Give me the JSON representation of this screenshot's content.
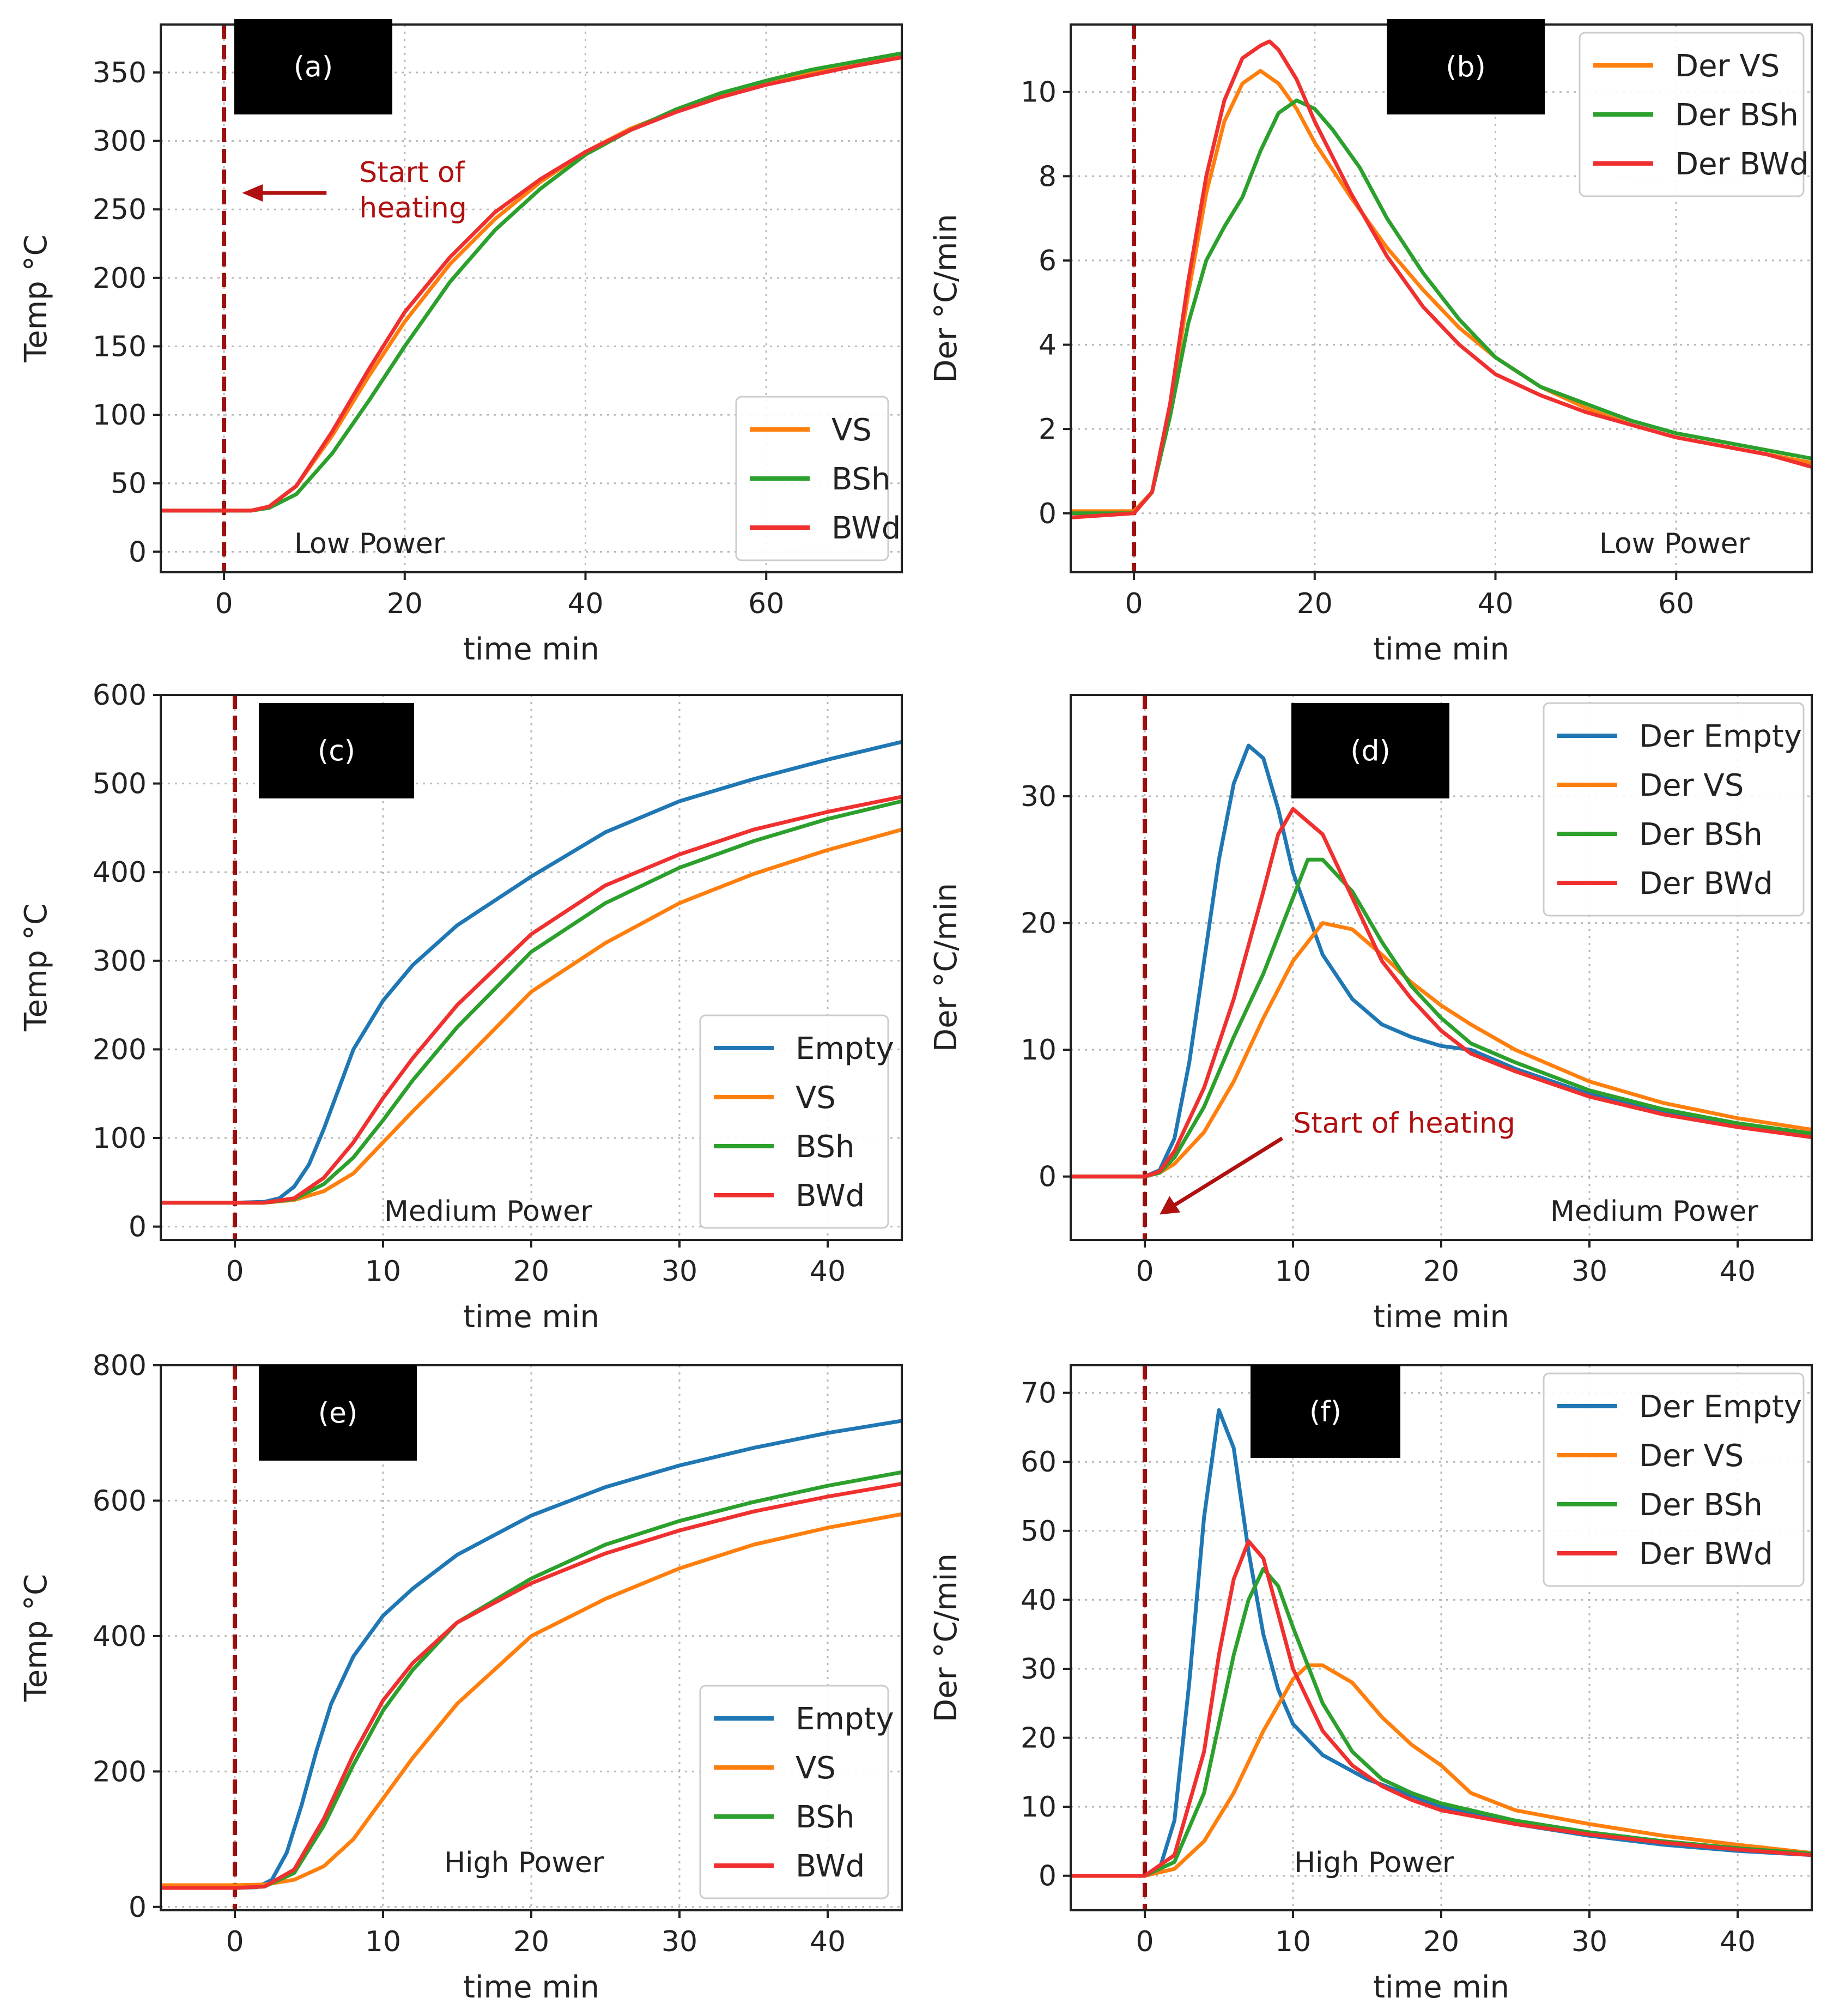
{
  "colors": {
    "Empty": "#1f77b4",
    "VS": "#ff7f0e",
    "BSh": "#2ca02c",
    "BWd": "#f0302f",
    "start_line": "#9b0f0f",
    "annotation": "#b01010"
  },
  "chart_data": [
    {
      "panel": "(a)",
      "type": "line",
      "xlabel": "time min",
      "ylabel": "Temp °C",
      "xlim": [
        -7,
        75
      ],
      "ylim": [
        -15,
        385
      ],
      "xticks": [
        0,
        20,
        40,
        60
      ],
      "yticks": [
        0,
        50,
        100,
        150,
        200,
        250,
        300,
        350
      ],
      "grid": true,
      "legend": "lower-right",
      "power_label": "Low Power",
      "annotation": {
        "text": [
          "Start of",
          "heating"
        ],
        "arrow_to": [
          2,
          262
        ]
      },
      "series": [
        {
          "key": "VS",
          "name": "VS",
          "x": [
            -7,
            0,
            3,
            5,
            8,
            12,
            16,
            20,
            25,
            30,
            35,
            40,
            45,
            50,
            55,
            60,
            65,
            70,
            75
          ],
          "y": [
            30,
            30,
            30,
            33,
            48,
            85,
            128,
            168,
            210,
            243,
            270,
            292,
            309,
            322,
            334,
            343,
            350,
            357,
            363
          ]
        },
        {
          "key": "BSh",
          "name": "BSh",
          "x": [
            -7,
            0,
            3,
            5,
            8,
            12,
            16,
            20,
            25,
            30,
            35,
            40,
            45,
            50,
            55,
            60,
            65,
            70,
            75
          ],
          "y": [
            30,
            30,
            30,
            32,
            42,
            72,
            110,
            150,
            197,
            235,
            265,
            290,
            308,
            323,
            335,
            344,
            352,
            358,
            364
          ]
        },
        {
          "key": "BWd",
          "name": "BWd",
          "x": [
            -7,
            0,
            3,
            5,
            8,
            12,
            16,
            20,
            25,
            30,
            35,
            40,
            45,
            50,
            55,
            60,
            65,
            70,
            75
          ],
          "y": [
            30,
            30,
            30,
            33,
            48,
            88,
            133,
            175,
            215,
            248,
            272,
            292,
            308,
            321,
            332,
            341,
            348,
            355,
            361
          ]
        }
      ]
    },
    {
      "panel": "(b)",
      "type": "line",
      "xlabel": "time min",
      "ylabel": "Der °C/min",
      "xlim": [
        -7,
        75
      ],
      "ylim": [
        -1.4,
        11.6
      ],
      "xticks": [
        0,
        20,
        40,
        60
      ],
      "yticks": [
        0,
        2,
        4,
        6,
        8,
        10
      ],
      "grid": true,
      "legend": "top-right",
      "power_label": "Low Power",
      "series": [
        {
          "key": "VS",
          "name": "Der VS",
          "x": [
            -7,
            0,
            2,
            4,
            6,
            8,
            10,
            12,
            14,
            16,
            18,
            20,
            24,
            28,
            32,
            36,
            40,
            45,
            50,
            55,
            60,
            65,
            70,
            75
          ],
          "y": [
            0.05,
            0.05,
            0.5,
            2.5,
            5.2,
            7.6,
            9.3,
            10.2,
            10.5,
            10.2,
            9.6,
            8.8,
            7.5,
            6.3,
            5.3,
            4.4,
            3.7,
            3.0,
            2.5,
            2.1,
            1.8,
            1.6,
            1.4,
            1.2
          ]
        },
        {
          "key": "BSh",
          "name": "Der BSh",
          "x": [
            -7,
            0,
            2,
            4,
            6,
            8,
            10,
            12,
            14,
            16,
            18,
            20,
            22,
            25,
            28,
            32,
            36,
            40,
            45,
            50,
            55,
            60,
            65,
            70,
            75
          ],
          "y": [
            0.0,
            0.0,
            0.5,
            2.3,
            4.5,
            6.0,
            6.8,
            7.5,
            8.6,
            9.5,
            9.8,
            9.6,
            9.1,
            8.2,
            7.0,
            5.7,
            4.6,
            3.7,
            3.0,
            2.6,
            2.2,
            1.9,
            1.7,
            1.5,
            1.3
          ]
        },
        {
          "key": "BWd",
          "name": "Der BWd",
          "x": [
            -7,
            0,
            2,
            4,
            6,
            8,
            10,
            12,
            14,
            15,
            16,
            18,
            20,
            24,
            28,
            32,
            36,
            40,
            45,
            50,
            55,
            60,
            65,
            70,
            75
          ],
          "y": [
            -0.1,
            0.0,
            0.5,
            2.6,
            5.5,
            8.0,
            9.8,
            10.8,
            11.1,
            11.2,
            11.0,
            10.3,
            9.3,
            7.6,
            6.1,
            4.9,
            4.0,
            3.3,
            2.8,
            2.4,
            2.1,
            1.8,
            1.6,
            1.4,
            1.1
          ]
        }
      ]
    },
    {
      "panel": "(c)",
      "type": "line",
      "xlabel": "time min",
      "ylabel": "Temp °C",
      "xlim": [
        -5,
        45
      ],
      "ylim": [
        -15,
        600
      ],
      "xticks": [
        0,
        10,
        20,
        30,
        40
      ],
      "yticks": [
        0,
        100,
        200,
        300,
        400,
        500,
        600
      ],
      "grid": true,
      "legend": "lower-right",
      "power_label": "Medium Power",
      "series": [
        {
          "key": "Empty",
          "name": "Empty",
          "x": [
            -5,
            0,
            2,
            3,
            4,
            5,
            6,
            7,
            8,
            10,
            12,
            15,
            20,
            25,
            30,
            35,
            40,
            45
          ],
          "y": [
            27,
            27,
            28,
            32,
            45,
            70,
            110,
            155,
            200,
            255,
            295,
            340,
            395,
            445,
            480,
            505,
            527,
            547
          ]
        },
        {
          "key": "VS",
          "name": "VS",
          "x": [
            -5,
            0,
            2,
            4,
            6,
            8,
            10,
            12,
            15,
            20,
            25,
            30,
            35,
            40,
            45
          ],
          "y": [
            27,
            27,
            27,
            30,
            40,
            60,
            95,
            130,
            180,
            265,
            320,
            365,
            398,
            425,
            448
          ]
        },
        {
          "key": "BSh",
          "name": "BSh",
          "x": [
            -5,
            0,
            2,
            4,
            6,
            8,
            10,
            12,
            15,
            20,
            25,
            30,
            35,
            40,
            45
          ],
          "y": [
            27,
            27,
            27,
            31,
            48,
            78,
            120,
            165,
            225,
            310,
            365,
            405,
            435,
            460,
            480
          ]
        },
        {
          "key": "BWd",
          "name": "BWd",
          "x": [
            -5,
            0,
            2,
            4,
            6,
            8,
            10,
            12,
            15,
            20,
            25,
            30,
            35,
            40,
            45
          ],
          "y": [
            27,
            27,
            27,
            32,
            55,
            95,
            145,
            190,
            250,
            330,
            385,
            420,
            448,
            468,
            485
          ]
        }
      ]
    },
    {
      "panel": "(d)",
      "type": "line",
      "xlabel": "time min",
      "ylabel": "Der °C/min",
      "xlim": [
        -5,
        45
      ],
      "ylim": [
        -5,
        38
      ],
      "xticks": [
        0,
        10,
        20,
        30,
        40
      ],
      "yticks": [
        0,
        10,
        20,
        30
      ],
      "grid": true,
      "legend": "top-right",
      "power_label": "Medium Power",
      "annotation": {
        "text": [
          "Start of heating"
        ],
        "arrow_to": [
          1,
          -3
        ]
      },
      "series": [
        {
          "key": "Empty",
          "name": "Der Empty",
          "x": [
            -5,
            0,
            1,
            2,
            3,
            4,
            5,
            6,
            7,
            8,
            9,
            10,
            12,
            14,
            16,
            18,
            20,
            22,
            25,
            30,
            35,
            40,
            45
          ],
          "y": [
            0,
            0,
            0.5,
            3,
            9,
            17,
            25,
            31,
            34,
            33,
            29,
            24,
            17.5,
            14,
            12,
            11,
            10.3,
            10,
            8.5,
            6.5,
            5,
            4,
            3.3
          ]
        },
        {
          "key": "VS",
          "name": "Der VS",
          "x": [
            -5,
            0,
            1,
            2,
            4,
            6,
            8,
            10,
            12,
            14,
            16,
            18,
            20,
            22,
            25,
            30,
            35,
            40,
            45
          ],
          "y": [
            0,
            0,
            0.3,
            1,
            3.5,
            7.5,
            12.5,
            17,
            20,
            19.5,
            17.5,
            15.3,
            13.5,
            12,
            10,
            7.5,
            5.8,
            4.6,
            3.7
          ]
        },
        {
          "key": "BSh",
          "name": "Der BSh",
          "x": [
            -5,
            0,
            1,
            2,
            4,
            6,
            8,
            10,
            11,
            12,
            14,
            16,
            18,
            20,
            22,
            25,
            30,
            35,
            40,
            45
          ],
          "y": [
            0,
            0,
            0.3,
            1.5,
            5.5,
            11,
            16,
            22,
            25,
            25,
            22.5,
            18.5,
            15,
            12.5,
            10.5,
            9,
            6.8,
            5.3,
            4.2,
            3.4
          ]
        },
        {
          "key": "BWd",
          "name": "Der BWd",
          "x": [
            -5,
            0,
            1,
            2,
            4,
            6,
            8,
            9,
            10,
            12,
            14,
            16,
            18,
            20,
            22,
            25,
            30,
            35,
            40,
            45
          ],
          "y": [
            0,
            0,
            0.4,
            2,
            7,
            14,
            22.5,
            27,
            29,
            27,
            22,
            17,
            14,
            11.5,
            9.7,
            8.3,
            6.3,
            4.9,
            3.9,
            3.1
          ]
        }
      ]
    },
    {
      "panel": "(e)",
      "type": "line",
      "xlabel": "time min",
      "ylabel": "Temp °C",
      "xlim": [
        -5,
        45
      ],
      "ylim": [
        -5,
        800
      ],
      "xticks": [
        0,
        10,
        20,
        30,
        40
      ],
      "yticks": [
        0,
        200,
        400,
        600,
        800
      ],
      "grid": true,
      "legend": "lower-right",
      "power_label": "High Power",
      "series": [
        {
          "key": "Empty",
          "name": "Empty",
          "x": [
            -5,
            0,
            1.5,
            2.5,
            3.5,
            4.5,
            5.5,
            6.5,
            8,
            10,
            12,
            15,
            20,
            25,
            30,
            35,
            40,
            45
          ],
          "y": [
            28,
            28,
            29,
            40,
            80,
            150,
            230,
            300,
            370,
            430,
            470,
            520,
            578,
            620,
            652,
            678,
            700,
            718
          ]
        },
        {
          "key": "VS",
          "name": "VS",
          "x": [
            -5,
            0,
            2,
            4,
            6,
            8,
            10,
            12,
            15,
            20,
            25,
            30,
            35,
            40,
            45
          ],
          "y": [
            32,
            32,
            33,
            40,
            60,
            100,
            160,
            220,
            300,
            400,
            455,
            500,
            535,
            560,
            580
          ]
        },
        {
          "key": "BSh",
          "name": "BSh",
          "x": [
            -5,
            0,
            2,
            4,
            6,
            8,
            10,
            12,
            15,
            20,
            25,
            30,
            35,
            40,
            45
          ],
          "y": [
            28,
            28,
            30,
            50,
            120,
            210,
            290,
            350,
            420,
            485,
            535,
            570,
            598,
            622,
            642
          ]
        },
        {
          "key": "BWd",
          "name": "BWd",
          "x": [
            -5,
            0,
            2,
            4,
            6,
            8,
            10,
            12,
            15,
            20,
            25,
            30,
            35,
            40,
            45
          ],
          "y": [
            28,
            28,
            30,
            55,
            130,
            225,
            305,
            360,
            420,
            478,
            522,
            556,
            584,
            606,
            625
          ]
        }
      ]
    },
    {
      "panel": "(f)",
      "type": "line",
      "xlabel": "time min",
      "ylabel": "Der °C/min",
      "xlim": [
        -5,
        45
      ],
      "ylim": [
        -5,
        74
      ],
      "xticks": [
        0,
        10,
        20,
        30,
        40
      ],
      "yticks": [
        0,
        10,
        20,
        30,
        40,
        50,
        60,
        70
      ],
      "grid": true,
      "legend": "top-right",
      "power_label": "High Power",
      "series": [
        {
          "key": "Empty",
          "name": "Der Empty",
          "x": [
            -5,
            0,
            1,
            2,
            3,
            4,
            5,
            6,
            7,
            8,
            9,
            10,
            12,
            15,
            20,
            25,
            30,
            35,
            40,
            45
          ],
          "y": [
            0,
            0,
            1,
            8,
            28,
            52,
            67.5,
            62,
            47,
            35,
            27,
            22,
            17.5,
            14,
            10,
            7.5,
            5.8,
            4.5,
            3.6,
            3
          ]
        },
        {
          "key": "VS",
          "name": "Der VS",
          "x": [
            -5,
            0,
            2,
            4,
            6,
            8,
            10,
            11,
            12,
            14,
            16,
            18,
            20,
            22,
            25,
            30,
            35,
            40,
            45
          ],
          "y": [
            0,
            0,
            1,
            5,
            12,
            21,
            28.5,
            30.5,
            30.5,
            28,
            23,
            19,
            16,
            12,
            9.5,
            7.5,
            5.8,
            4.5,
            3.3
          ]
        },
        {
          "key": "BSh",
          "name": "Der BSh",
          "x": [
            -5,
            0,
            2,
            4,
            5,
            6,
            7,
            8,
            9,
            10,
            12,
            14,
            16,
            18,
            20,
            25,
            30,
            35,
            40,
            45
          ],
          "y": [
            0,
            0,
            2,
            12,
            22,
            32,
            40,
            44.5,
            42,
            36,
            25,
            18,
            14,
            12,
            10.5,
            8,
            6.3,
            5,
            4,
            3.2
          ]
        },
        {
          "key": "BWd",
          "name": "Der BWd",
          "x": [
            -5,
            0,
            2,
            4,
            5,
            6,
            7,
            8,
            9,
            10,
            12,
            14,
            16,
            18,
            20,
            25,
            30,
            35,
            40,
            45
          ],
          "y": [
            0,
            0,
            3,
            18,
            32,
            43,
            48.5,
            46,
            38,
            30,
            21,
            16,
            13,
            11,
            9.5,
            7.5,
            6,
            4.8,
            3.8,
            3
          ]
        }
      ]
    }
  ]
}
